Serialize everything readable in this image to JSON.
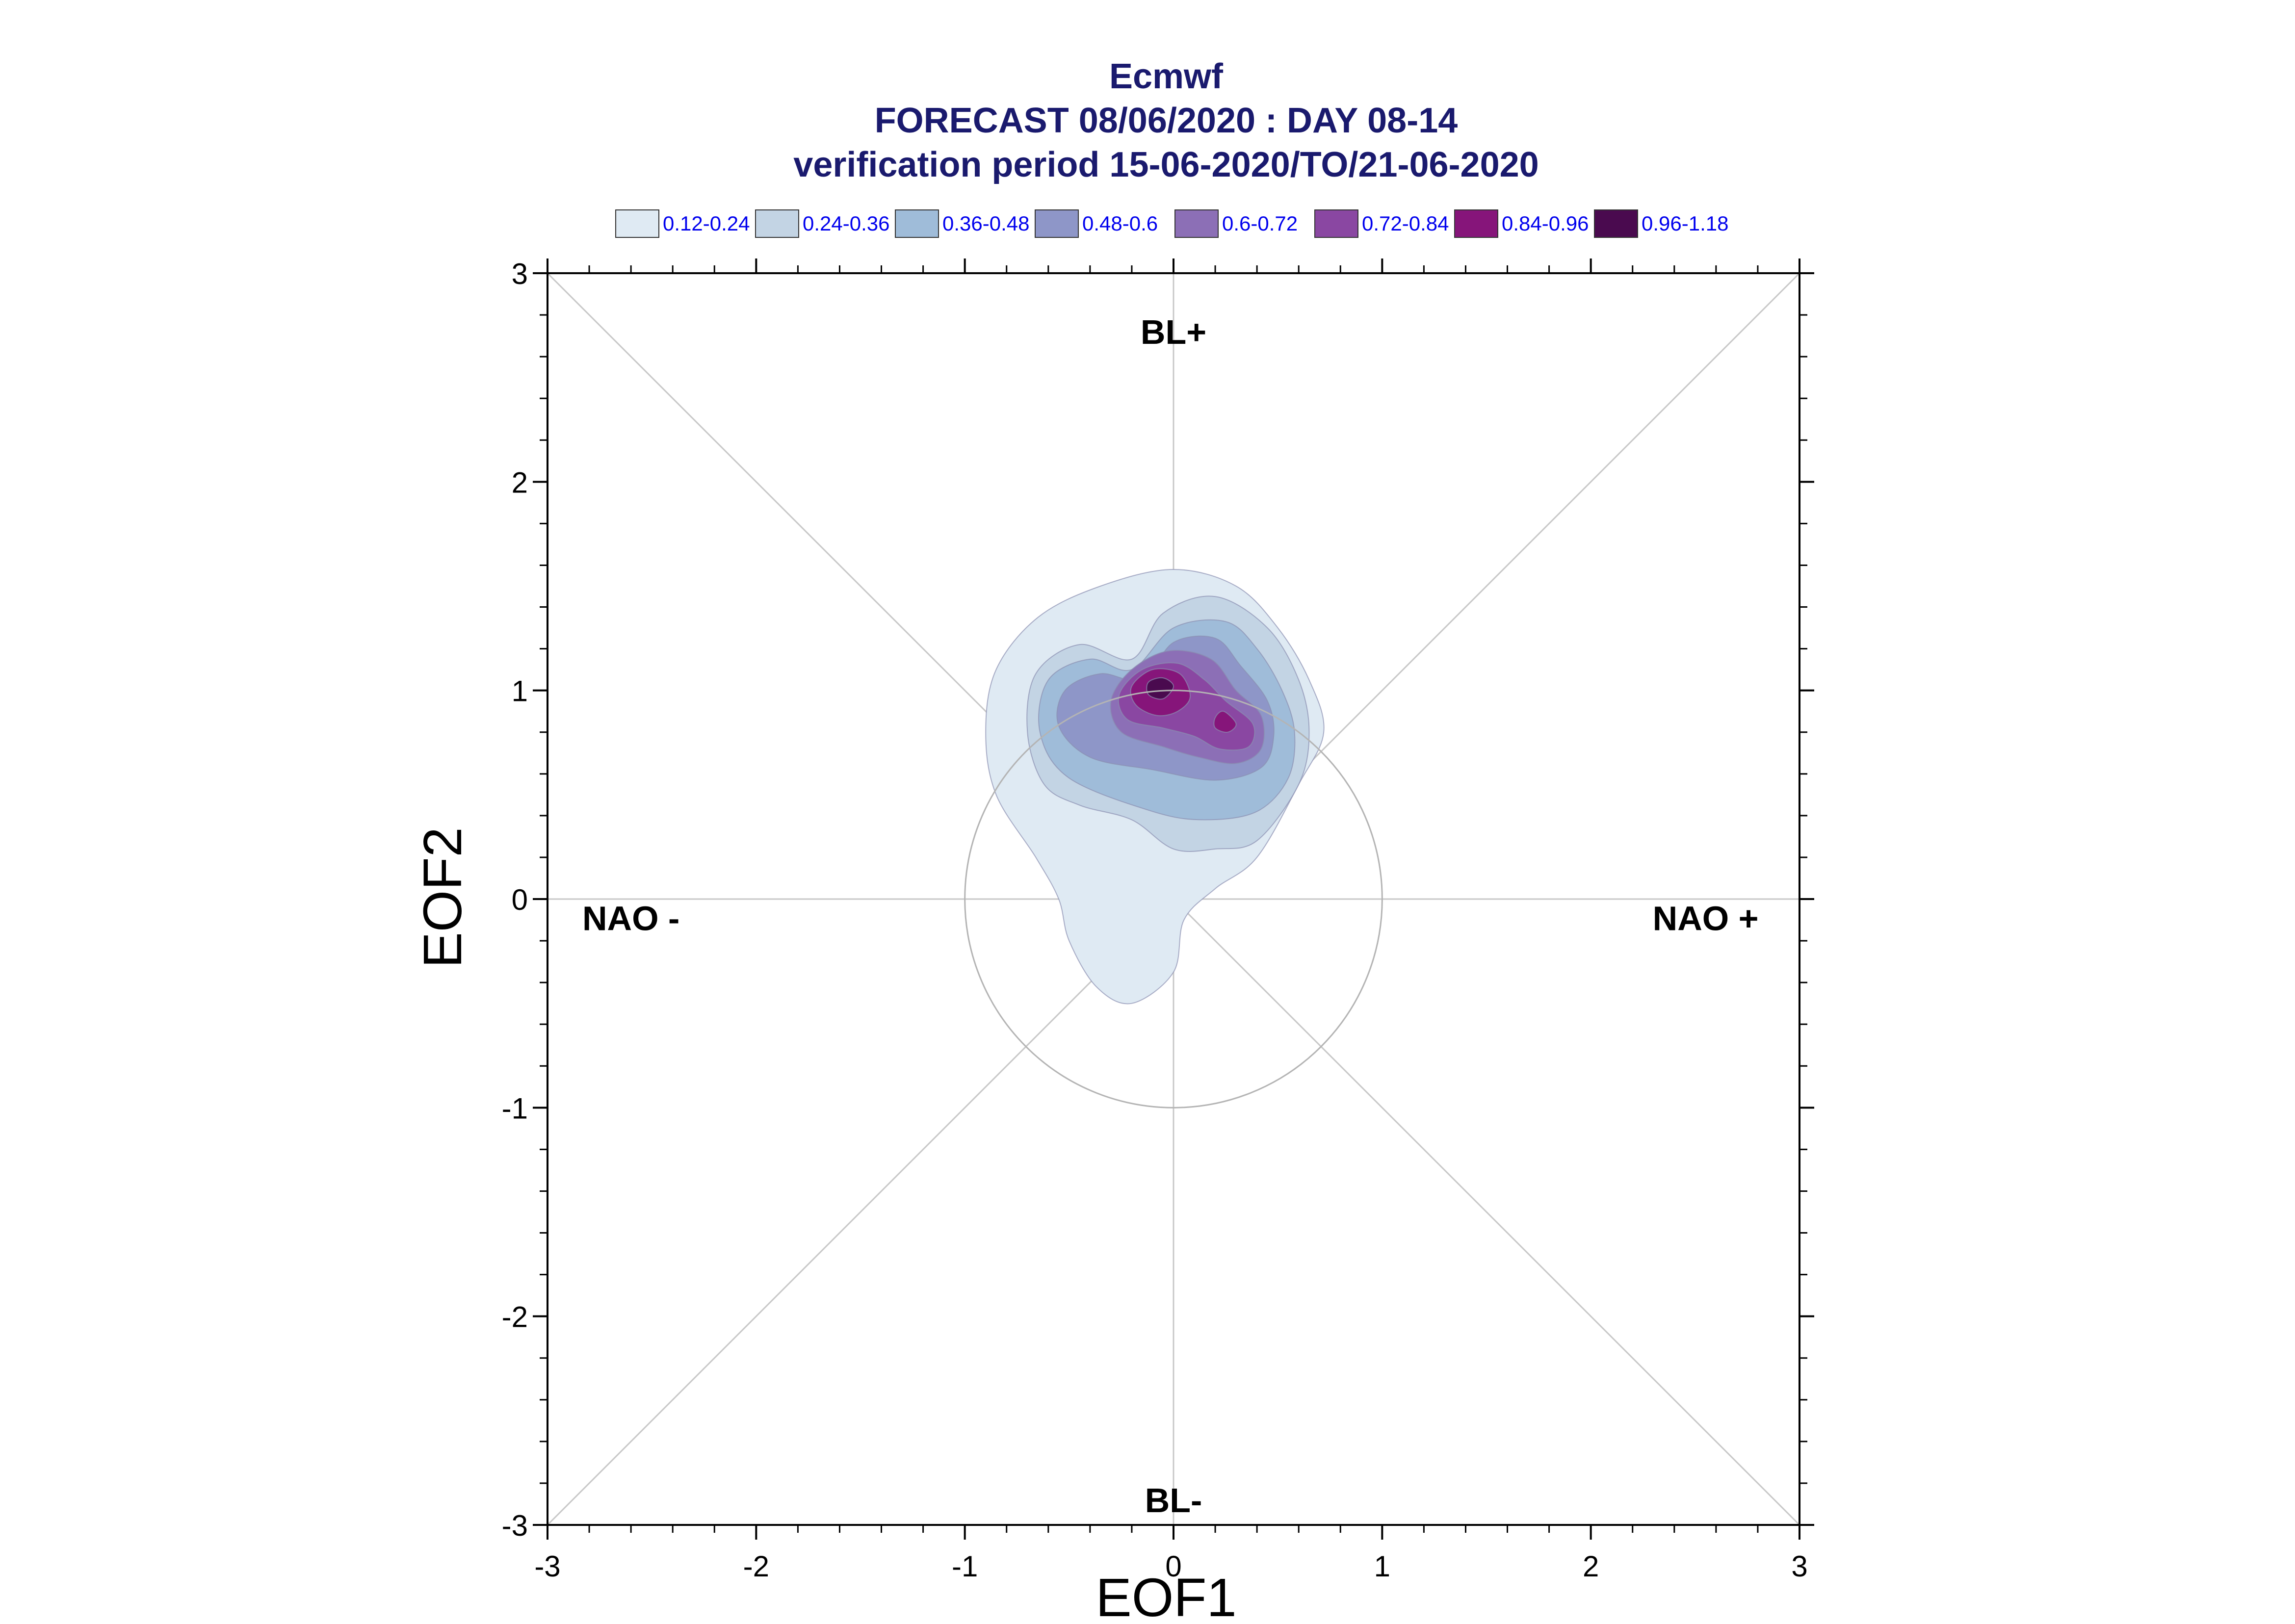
{
  "chart_data": {
    "type": "contour",
    "title": "Ecmwf",
    "subtitle": "FORECAST 08/06/2020 : DAY 08-14",
    "subtitle2": "verification period 15-06-2020/TO/21-06-2020",
    "xlabel": "EOF1",
    "ylabel": "EOF2",
    "xlim": [
      -3,
      3
    ],
    "ylim": [
      -3,
      3
    ],
    "xticks": [
      -3,
      -2,
      -1,
      0,
      1,
      2,
      3
    ],
    "yticks": [
      -3,
      -2,
      -1,
      0,
      1,
      2,
      3
    ],
    "tick_labels_x": [
      "-3",
      "-2",
      "-1",
      "0",
      "1",
      "2",
      "3"
    ],
    "tick_labels_y": [
      "-3",
      "-2",
      "-1",
      "0",
      "1",
      "2",
      "3"
    ],
    "unit_circle_radius": 1,
    "regimes": [
      {
        "label": "BL+",
        "x": 0,
        "y": 2.72
      },
      {
        "label": "BL-",
        "x": 0,
        "y": -2.88
      },
      {
        "label": "NAO -",
        "x": -2.6,
        "y": -0.09
      },
      {
        "label": "NAO +",
        "x": 2.55,
        "y": -0.09
      }
    ],
    "legend": [
      {
        "label": "0.12-0.24",
        "color": "#dfeaf3"
      },
      {
        "label": "0.24-0.36",
        "color": "#c3d4e4"
      },
      {
        "label": "0.36-0.48",
        "color": "#9fbcd9"
      },
      {
        "label": "0.48-0.6",
        "color": "#8e96c8"
      },
      {
        "label": "0.6-0.72",
        "color": "#8c6fb6"
      },
      {
        "label": "0.72-0.84",
        "color": "#8a47a2"
      },
      {
        "label": "0.84-0.96",
        "color": "#86157a"
      },
      {
        "label": "0.96-1.18",
        "color": "#4a0a4f"
      }
    ],
    "contours": [
      {
        "level": "0.12-0.24",
        "color": "#dfeaf3",
        "points": [
          [
            -0.2,
            -0.5
          ],
          [
            -0.37,
            -0.42
          ],
          [
            -0.5,
            -0.2
          ],
          [
            -0.55,
            0.0
          ],
          [
            -0.66,
            0.2
          ],
          [
            -0.85,
            0.5
          ],
          [
            -0.9,
            0.8
          ],
          [
            -0.85,
            1.1
          ],
          [
            -0.65,
            1.35
          ],
          [
            -0.35,
            1.5
          ],
          [
            0.0,
            1.58
          ],
          [
            0.3,
            1.5
          ],
          [
            0.5,
            1.3
          ],
          [
            0.65,
            1.05
          ],
          [
            0.72,
            0.8
          ],
          [
            0.6,
            0.55
          ],
          [
            0.4,
            0.2
          ],
          [
            0.2,
            0.05
          ],
          [
            0.05,
            -0.1
          ],
          [
            0.0,
            -0.35
          ]
        ]
      },
      {
        "level": "0.24-0.36",
        "color": "#c3d4e4",
        "points": [
          [
            0.0,
            0.24
          ],
          [
            -0.2,
            0.38
          ],
          [
            -0.45,
            0.45
          ],
          [
            -0.62,
            0.55
          ],
          [
            -0.7,
            0.8
          ],
          [
            -0.66,
            1.08
          ],
          [
            -0.45,
            1.22
          ],
          [
            -0.2,
            1.15
          ],
          [
            -0.05,
            1.37
          ],
          [
            0.2,
            1.45
          ],
          [
            0.45,
            1.3
          ],
          [
            0.6,
            1.05
          ],
          [
            0.65,
            0.8
          ],
          [
            0.6,
            0.55
          ],
          [
            0.4,
            0.28
          ],
          [
            0.2,
            0.24
          ]
        ]
      },
      {
        "level": "0.36-0.48",
        "color": "#9fbcd9",
        "points": [
          [
            -0.1,
            0.42
          ],
          [
            -0.5,
            0.58
          ],
          [
            -0.64,
            0.8
          ],
          [
            -0.6,
            1.05
          ],
          [
            -0.4,
            1.15
          ],
          [
            -0.2,
            1.1
          ],
          [
            0.0,
            1.3
          ],
          [
            0.25,
            1.33
          ],
          [
            0.4,
            1.2
          ],
          [
            0.52,
            1.0
          ],
          [
            0.58,
            0.8
          ],
          [
            0.55,
            0.58
          ],
          [
            0.4,
            0.42
          ],
          [
            0.15,
            0.38
          ]
        ]
      },
      {
        "level": "0.48-0.6",
        "color": "#8e96c8",
        "points": [
          [
            -0.1,
            0.62
          ],
          [
            -0.4,
            0.68
          ],
          [
            -0.55,
            0.83
          ],
          [
            -0.52,
            1.0
          ],
          [
            -0.35,
            1.08
          ],
          [
            -0.15,
            1.05
          ],
          [
            0.0,
            1.23
          ],
          [
            0.2,
            1.25
          ],
          [
            0.32,
            1.12
          ],
          [
            0.45,
            0.95
          ],
          [
            0.48,
            0.78
          ],
          [
            0.42,
            0.63
          ],
          [
            0.2,
            0.57
          ]
        ]
      },
      {
        "level": "0.6-0.72",
        "color": "#8c6fb6",
        "points": [
          [
            -0.05,
            0.73
          ],
          [
            -0.25,
            0.8
          ],
          [
            -0.3,
            0.95
          ],
          [
            -0.2,
            1.1
          ],
          [
            -0.02,
            1.19
          ],
          [
            0.18,
            1.15
          ],
          [
            0.3,
            1.0
          ],
          [
            0.42,
            0.88
          ],
          [
            0.42,
            0.72
          ],
          [
            0.3,
            0.65
          ],
          [
            0.12,
            0.68
          ]
        ]
      },
      {
        "level": "0.72-0.84",
        "color": "#8a47a2",
        "points": [
          [
            -0.05,
            0.82
          ],
          [
            -0.22,
            0.86
          ],
          [
            -0.26,
            0.98
          ],
          [
            -0.15,
            1.1
          ],
          [
            0.02,
            1.13
          ],
          [
            0.15,
            1.05
          ],
          [
            0.25,
            0.95
          ],
          [
            0.38,
            0.84
          ],
          [
            0.36,
            0.73
          ],
          [
            0.22,
            0.72
          ],
          [
            0.1,
            0.78
          ]
        ]
      },
      {
        "level": "0.84-0.96",
        "color": "#86157a",
        "points": [
          [
            -0.08,
            0.88
          ],
          [
            -0.18,
            0.93
          ],
          [
            -0.2,
            1.02
          ],
          [
            -0.1,
            1.1
          ],
          [
            0.03,
            1.08
          ],
          [
            0.08,
            0.97
          ],
          [
            0.02,
            0.9
          ]
        ]
      },
      {
        "level": "0.84-0.96",
        "color": "#86157a",
        "points": [
          [
            0.2,
            0.87
          ],
          [
            0.24,
            0.9
          ],
          [
            0.3,
            0.84
          ],
          [
            0.26,
            0.8
          ],
          [
            0.2,
            0.82
          ]
        ]
      },
      {
        "level": "0.96-1.18",
        "color": "#4a0a4f",
        "points": [
          [
            -0.05,
            0.96
          ],
          [
            -0.12,
            0.98
          ],
          [
            -0.12,
            1.04
          ],
          [
            -0.05,
            1.06
          ],
          [
            0.0,
            1.02
          ]
        ]
      }
    ]
  }
}
